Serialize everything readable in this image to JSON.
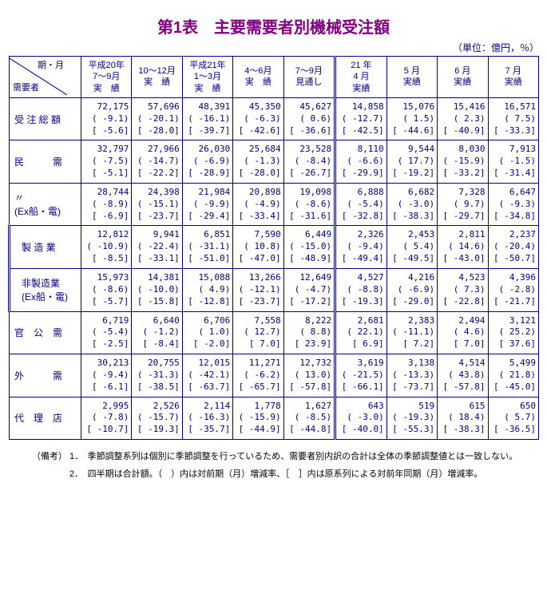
{
  "title": "第1表　主要需要者別機械受注額",
  "unit": "（単位：億円，％）",
  "corner": {
    "top": "期・月",
    "bottom": "需要者"
  },
  "col_headers": [
    "平成20年\n7～9月\n実　績",
    "10～12月\n実　績",
    "平成21年\n1～3月\n実　績",
    "4～6月\n実　績",
    "7～9月\n見通し",
    "21 年\n4 月\n実績",
    "5 月\n実績",
    "6 月\n実績",
    "7 月\n実績"
  ],
  "rows": [
    {
      "label": "受 注 総 額",
      "sub": false,
      "cells": [
        {
          "v": "72,175",
          "p": "( -9.1)",
          "b": "[ -5.6]"
        },
        {
          "v": "57,696",
          "p": "( -20.1)",
          "b": "[ -28.0]"
        },
        {
          "v": "48,391",
          "p": "( -16.1)",
          "b": "[ -39.7]"
        },
        {
          "v": "45,350",
          "p": "( -6.3)",
          "b": "[ -42.6]"
        },
        {
          "v": "45,627",
          "p": "( 0.6)",
          "b": "[ -36.6]"
        },
        {
          "v": "14,858",
          "p": "( -12.7)",
          "b": "[ -42.5]"
        },
        {
          "v": "15,076",
          "p": "( 1.5)",
          "b": "[ -44.6]"
        },
        {
          "v": "15,416",
          "p": "( 2.3)",
          "b": "[ -40.9]"
        },
        {
          "v": "16,571",
          "p": "( 7.5)",
          "b": "[ -33.3]"
        }
      ]
    },
    {
      "label": "民　　　需",
      "sub": false,
      "group_start": true,
      "cells": [
        {
          "v": "32,797",
          "p": "( -7.5)",
          "b": "[ -5.1]"
        },
        {
          "v": "27,966",
          "p": "( -14.7)",
          "b": "[ -22.2]"
        },
        {
          "v": "26,030",
          "p": "( -6.9)",
          "b": "[ -28.9]"
        },
        {
          "v": "25,684",
          "p": "( -1.3)",
          "b": "[ -28.0]"
        },
        {
          "v": "23,528",
          "p": "( -8.4)",
          "b": "[ -26.7]"
        },
        {
          "v": "8,110",
          "p": "( -6.6)",
          "b": "[ -29.9]"
        },
        {
          "v": "9,544",
          "p": "( 17.7)",
          "b": "[ -19.2]"
        },
        {
          "v": "8,030",
          "p": "( -15.9)",
          "b": "[ -33.2]"
        },
        {
          "v": "7,913",
          "p": "( -1.5)",
          "b": "[ -31.4]"
        }
      ]
    },
    {
      "label": "〃\n(Ex船・電)",
      "sub": false,
      "no_top": true,
      "cells": [
        {
          "v": "28,744",
          "p": "( -8.9)",
          "b": "[ -6.9]"
        },
        {
          "v": "24,398",
          "p": "( -15.1)",
          "b": "[ -23.7]"
        },
        {
          "v": "21,984",
          "p": "( -9.9)",
          "b": "[ -29.4]"
        },
        {
          "v": "20,898",
          "p": "( -4.9)",
          "b": "[ -33.4]"
        },
        {
          "v": "19,098",
          "p": "( -8.6)",
          "b": "[ -31.6]"
        },
        {
          "v": "6,888",
          "p": "( -5.4)",
          "b": "[ -32.8]"
        },
        {
          "v": "6,682",
          "p": "( -3.0)",
          "b": "[ -38.3]"
        },
        {
          "v": "7,328",
          "p": "( 9.7)",
          "b": "[ -29.7]"
        },
        {
          "v": "6,647",
          "p": "( -9.3)",
          "b": "[ -34.8]"
        }
      ]
    },
    {
      "label": "製 造 業",
      "sub": true,
      "group_start": true,
      "cells": [
        {
          "v": "12,812",
          "p": "( -10.9)",
          "b": "[ -8.5]"
        },
        {
          "v": "9,941",
          "p": "( -22.4)",
          "b": "[ -33.1]"
        },
        {
          "v": "6,851",
          "p": "( -31.1)",
          "b": "[ -51.0]"
        },
        {
          "v": "7,590",
          "p": "( 10.8)",
          "b": "[ -47.0]"
        },
        {
          "v": "6,449",
          "p": "( -15.0)",
          "b": "[ -48.9]"
        },
        {
          "v": "2,326",
          "p": "( -9.4)",
          "b": "[ -49.4]"
        },
        {
          "v": "2,453",
          "p": "( 5.4)",
          "b": "[ -49.5]"
        },
        {
          "v": "2,811",
          "p": "( 14.6)",
          "b": "[ -43.0]"
        },
        {
          "v": "2,237",
          "p": "( -20.4)",
          "b": "[ -50.7]"
        }
      ]
    },
    {
      "label": "非製造業\n(Ex船・電)",
      "sub": true,
      "no_top": true,
      "cells": [
        {
          "v": "15,973",
          "p": "( -8.6)",
          "b": "[ -5.7]"
        },
        {
          "v": "14,381",
          "p": "( -10.0)",
          "b": "[ -15.8]"
        },
        {
          "v": "15,088",
          "p": "( 4.9)",
          "b": "[ -12.8]"
        },
        {
          "v": "13,266",
          "p": "( -12.1)",
          "b": "[ -23.7]"
        },
        {
          "v": "12,649",
          "p": "( -4.7)",
          "b": "[ -17.2]"
        },
        {
          "v": "4,527",
          "p": "( -8.8)",
          "b": "[ -19.3]"
        },
        {
          "v": "4,216",
          "p": "( -6.9)",
          "b": "[ -29.0]"
        },
        {
          "v": "4,523",
          "p": "( 7.3)",
          "b": "[ -22.8]"
        },
        {
          "v": "4,396",
          "p": "( -2.8)",
          "b": "[ -21.7]"
        }
      ]
    },
    {
      "label": "官　公　需",
      "sub": false,
      "cells": [
        {
          "v": "6,719",
          "p": "( -5.4)",
          "b": "[ -2.5]"
        },
        {
          "v": "6,640",
          "p": "( -1.2)",
          "b": "[ -8.4]"
        },
        {
          "v": "6,706",
          "p": "( 1.0)",
          "b": "[ -2.0]"
        },
        {
          "v": "7,558",
          "p": "( 12.7)",
          "b": "[ 7.0]"
        },
        {
          "v": "8,222",
          "p": "( 8.8)",
          "b": "[ 23.9]"
        },
        {
          "v": "2,681",
          "p": "( 22.1)",
          "b": "[ 6.9]"
        },
        {
          "v": "2,383",
          "p": "( -11.1)",
          "b": "[ 7.2]"
        },
        {
          "v": "2,494",
          "p": "( 4.6)",
          "b": "[ 7.0]"
        },
        {
          "v": "3,121",
          "p": "( 25.2)",
          "b": "[ 37.6]"
        }
      ]
    },
    {
      "label": "外　　　需",
      "sub": false,
      "cells": [
        {
          "v": "30,213",
          "p": "( -9.4)",
          "b": "[ -6.1]"
        },
        {
          "v": "20,755",
          "p": "( -31.3)",
          "b": "[ -38.5]"
        },
        {
          "v": "12,015",
          "p": "( -42.1)",
          "b": "[ -63.7]"
        },
        {
          "v": "11,271",
          "p": "( -6.2)",
          "b": "[ -65.7]"
        },
        {
          "v": "12,732",
          "p": "( 13.0)",
          "b": "[ -57.8]"
        },
        {
          "v": "3,619",
          "p": "( -21.5)",
          "b": "[ -66.1]"
        },
        {
          "v": "3,138",
          "p": "( -13.3)",
          "b": "[ -73.7]"
        },
        {
          "v": "4,514",
          "p": "( 43.8)",
          "b": "[ -57.8]"
        },
        {
          "v": "5,499",
          "p": "( 21.8)",
          "b": "[ -45.0]"
        }
      ]
    },
    {
      "label": "代　理　店",
      "sub": false,
      "cells": [
        {
          "v": "2,995",
          "p": "( -7.8)",
          "b": "[ -10.7]"
        },
        {
          "v": "2,526",
          "p": "( -15.7)",
          "b": "[ -19.3]"
        },
        {
          "v": "2,114",
          "p": "( -16.3)",
          "b": "[ -35.7]"
        },
        {
          "v": "1,778",
          "p": "( -15.9)",
          "b": "[ -44.9]"
        },
        {
          "v": "1,627",
          "p": "( -8.5)",
          "b": "[ -44.8]"
        },
        {
          "v": "643",
          "p": "( -3.0)",
          "b": "[ -40.0]"
        },
        {
          "v": "519",
          "p": "( -19.3)",
          "b": "[ -55.3]"
        },
        {
          "v": "615",
          "p": "( 18.4)",
          "b": "[ -38.3]"
        },
        {
          "v": "650",
          "p": "( 5.7)",
          "b": "[ -36.5]"
        }
      ]
    }
  ],
  "notes": [
    "（備考） 1．　季節調整系列は個別に季節調整を行っているため、需要者別内訳の合計は全体の季節調整値とは一致しない。",
    "　　　　 2．　四半期は合計額。（　）内は対前期（月）増減率、［　］内は原系列による対前年同期（月）増減率。"
  ]
}
